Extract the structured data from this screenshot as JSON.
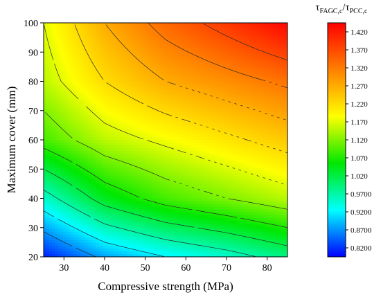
{
  "chart_data": {
    "type": "heatmap",
    "subtype": "filled-contour",
    "xlabel": "Compressive strength (MPa)",
    "ylabel": "Maximum cover (mm)",
    "xlim": [
      25,
      85
    ],
    "ylim": [
      20,
      100
    ],
    "x_ticks": [
      30,
      40,
      50,
      60,
      70,
      80
    ],
    "y_ticks": [
      20,
      30,
      40,
      50,
      60,
      70,
      80,
      90,
      100
    ],
    "colorbar": {
      "title_symbol": "τ",
      "title_num_sub": "FAGC,c",
      "title_den_sub": "PCC,c",
      "title_sep": "/",
      "range": [
        0.795,
        1.445
      ],
      "tick_values": [
        0.82,
        0.87,
        0.92,
        0.97,
        1.02,
        1.07,
        1.12,
        1.17,
        1.22,
        1.27,
        1.32,
        1.37,
        1.42
      ],
      "tick_labels": [
        "0.8200",
        "0.8700",
        "0.9200",
        "0.9700",
        "1.020",
        "1.070",
        "1.120",
        "1.170",
        "1.220",
        "1.270",
        "1.320",
        "1.370",
        "1.420"
      ],
      "colors": [
        "#0000ff",
        "#00ffff",
        "#00e800",
        "#ffff00",
        "#ff8000",
        "#ff0000"
      ]
    },
    "contour_levels": [
      0.87,
      0.92,
      0.97,
      1.02,
      1.07,
      1.12,
      1.17,
      1.22,
      1.27,
      1.32,
      1.37
    ],
    "surface_grid": {
      "x": [
        25,
        40,
        55,
        70,
        85
      ],
      "y": [
        20,
        40,
        60,
        80,
        100
      ],
      "z": [
        [
          0.81,
          0.88,
          0.92,
          0.95,
          0.99
        ],
        [
          0.95,
          1.04,
          1.09,
          1.12,
          1.15
        ],
        [
          1.09,
          1.15,
          1.18,
          1.21,
          1.24
        ],
        [
          1.15,
          1.22,
          1.27,
          1.3,
          1.33
        ],
        [
          1.17,
          1.27,
          1.34,
          1.39,
          1.44
        ]
      ]
    }
  }
}
